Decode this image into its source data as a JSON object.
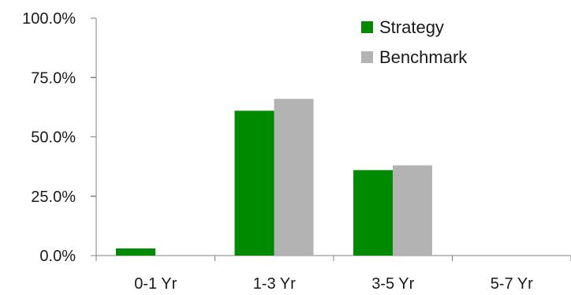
{
  "chart_data": {
    "type": "bar",
    "categories": [
      "0-1 Yr",
      "1-3 Yr",
      "3-5 Yr",
      "5-7 Yr"
    ],
    "series": [
      {
        "name": "Strategy",
        "values": [
          3.0,
          61.0,
          36.0,
          0.0
        ],
        "color": "#008a00"
      },
      {
        "name": "Benchmark",
        "values": [
          0.0,
          66.0,
          38.0,
          0.0
        ],
        "color": "#b3b3b3"
      }
    ],
    "y_tick_labels": [
      "0.0%",
      "25.0%",
      "50.0%",
      "75.0%",
      "100.0%"
    ],
    "y_ticks": [
      0,
      25,
      50,
      75,
      100
    ],
    "ylim": [
      0,
      100
    ],
    "title": "",
    "xlabel": "",
    "ylabel": "",
    "grid": false,
    "legend_position": "top-right"
  }
}
